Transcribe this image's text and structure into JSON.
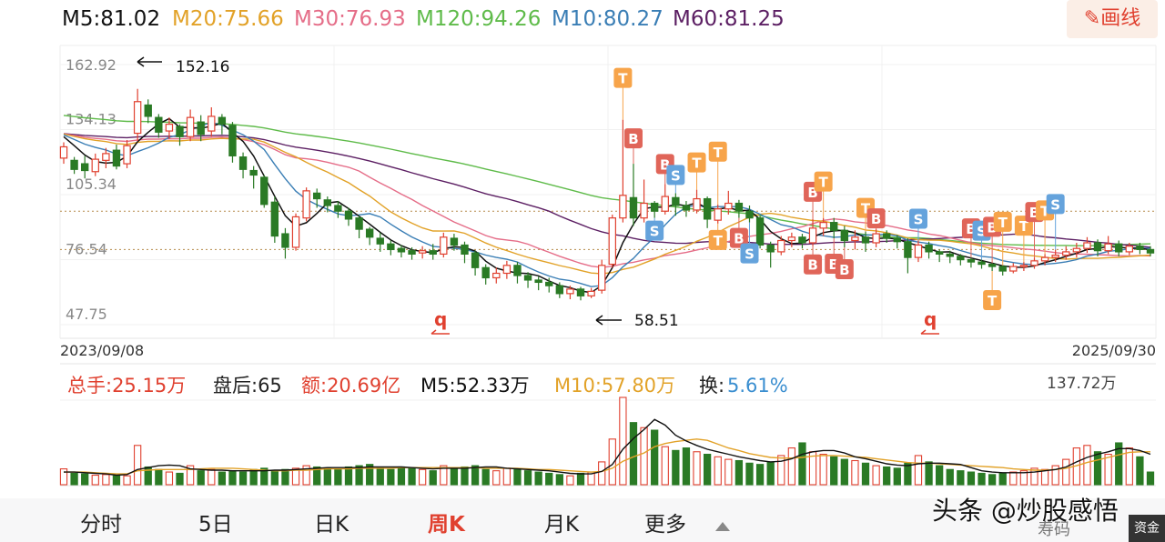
{
  "ma_bar": {
    "m5": "M5:81.02",
    "m20": "M20:75.66",
    "m30": "M30:76.93",
    "m120": "M120:94.26",
    "m10": "M10:80.27",
    "m60": "M60:81.25"
  },
  "draw_button": {
    "icon": "pencil-icon",
    "label": "画线"
  },
  "colors": {
    "up": "#e0402f",
    "down": "#2a7a25",
    "m5": "#111111",
    "m10": "#3a7eb5",
    "m20": "#e2a228",
    "m30": "#e56d88",
    "m60": "#5c1f63",
    "m120": "#5fbb4a",
    "tag_orange": "#f7a44a",
    "tag_red": "#e06559",
    "tag_blue": "#65a3dc"
  },
  "chart_data": {
    "type": "candlestick",
    "date_start": "2023/09/08",
    "date_end": "2025/09/30",
    "price_ticks": [
      "162.92",
      "134.13",
      "105.34",
      "76.54",
      "47.75"
    ],
    "price_range": [
      47.75,
      162.92
    ],
    "high_marker": {
      "label": "152.16",
      "value": 152.16
    },
    "low_marker": {
      "label": "58.51",
      "value": 58.51
    },
    "gap_markers": [
      "q",
      "q"
    ],
    "reference_lines": [
      98.0,
      81.0
    ],
    "candles": [
      [
        121.5,
        126.5,
        119.0,
        128.5
      ],
      [
        120.5,
        116.5,
        114.5,
        122.0
      ],
      [
        119.0,
        116.0,
        112.5,
        122.5
      ],
      [
        115.5,
        121.0,
        113.5,
        123.5
      ],
      [
        120.5,
        123.5,
        117.0,
        126.0
      ],
      [
        125.0,
        118.0,
        116.5,
        127.5
      ],
      [
        119.0,
        127.0,
        117.0,
        129.5
      ],
      [
        132.5,
        146.5,
        129.0,
        152.16
      ],
      [
        145.0,
        140.0,
        137.0,
        147.5
      ],
      [
        139.5,
        133.0,
        130.5,
        141.0
      ],
      [
        133.5,
        136.5,
        130.0,
        139.5
      ],
      [
        135.5,
        131.0,
        127.0,
        136.5
      ],
      [
        131.0,
        139.5,
        129.0,
        143.0
      ],
      [
        137.5,
        132.0,
        129.0,
        140.5
      ],
      [
        133.5,
        140.0,
        131.0,
        144.0
      ],
      [
        139.5,
        136.5,
        132.0,
        141.0
      ],
      [
        136.0,
        122.5,
        119.5,
        137.5
      ],
      [
        122.0,
        116.5,
        112.5,
        124.0
      ],
      [
        116.0,
        114.0,
        108.0,
        118.0
      ],
      [
        113.0,
        101.0,
        99.5,
        114.0
      ],
      [
        102.0,
        87.0,
        84.0,
        104.5
      ],
      [
        88.0,
        82.0,
        77.0,
        90.5
      ],
      [
        82.0,
        95.5,
        80.5,
        97.0
      ],
      [
        95.0,
        107.0,
        93.5,
        108.5
      ],
      [
        106.0,
        103.5,
        99.5,
        108.0
      ],
      [
        103.0,
        100.5,
        97.5,
        104.5
      ],
      [
        100.5,
        98.0,
        95.0,
        102.5
      ],
      [
        98.0,
        94.5,
        91.5,
        99.5
      ],
      [
        95.0,
        90.0,
        86.0,
        96.0
      ],
      [
        90.0,
        86.5,
        83.0,
        91.0
      ],
      [
        86.0,
        83.5,
        80.0,
        88.5
      ],
      [
        83.5,
        81.0,
        78.5,
        85.0
      ],
      [
        81.5,
        80.0,
        77.5,
        83.0
      ],
      [
        80.5,
        79.0,
        76.5,
        82.0
      ],
      [
        79.5,
        80.5,
        77.0,
        82.5
      ],
      [
        80.5,
        79.0,
        76.5,
        83.5
      ],
      [
        79.0,
        86.5,
        77.5,
        88.5
      ],
      [
        86.0,
        83.0,
        80.5,
        88.0
      ],
      [
        83.0,
        79.0,
        75.0,
        84.5
      ],
      [
        79.5,
        73.0,
        69.5,
        80.5
      ],
      [
        73.0,
        68.5,
        65.5,
        74.5
      ],
      [
        68.5,
        70.5,
        66.0,
        73.0
      ],
      [
        70.5,
        74.0,
        68.0,
        76.0
      ],
      [
        74.0,
        69.5,
        66.0,
        75.5
      ],
      [
        69.5,
        67.5,
        64.0,
        71.0
      ],
      [
        67.5,
        66.5,
        63.0,
        69.0
      ],
      [
        66.5,
        65.0,
        62.0,
        68.5
      ],
      [
        65.0,
        61.5,
        59.5,
        66.5
      ],
      [
        61.5,
        63.5,
        59.0,
        65.0
      ],
      [
        63.5,
        60.5,
        58.51,
        64.5
      ],
      [
        60.5,
        62.5,
        59.5,
        64.0
      ],
      [
        63.0,
        74.0,
        61.5,
        76.5
      ],
      [
        74.5,
        95.0,
        73.0,
        96.5
      ],
      [
        95.0,
        105.0,
        93.0,
        138.5
      ],
      [
        104.0,
        95.0,
        91.5,
        119.0
      ],
      [
        95.0,
        101.5,
        93.0,
        112.0
      ],
      [
        101.5,
        98.0,
        95.0,
        102.5
      ],
      [
        98.0,
        104.5,
        96.5,
        110.0
      ],
      [
        104.0,
        100.5,
        96.0,
        106.0
      ],
      [
        100.5,
        98.5,
        95.5,
        102.5
      ],
      [
        98.5,
        103.5,
        97.0,
        107.5
      ],
      [
        103.5,
        94.5,
        90.5,
        104.5
      ],
      [
        94.0,
        99.0,
        92.5,
        101.0
      ],
      [
        99.0,
        101.5,
        96.5,
        107.0
      ],
      [
        101.5,
        98.0,
        95.0,
        103.0
      ],
      [
        98.0,
        95.0,
        93.0,
        100.5
      ],
      [
        95.0,
        83.0,
        81.5,
        96.0
      ],
      [
        83.0,
        80.0,
        73.0,
        84.5
      ],
      [
        80.0,
        85.0,
        78.5,
        87.0
      ],
      [
        85.0,
        86.5,
        82.0,
        88.5
      ],
      [
        86.5,
        84.0,
        81.5,
        88.0
      ],
      [
        84.0,
        90.5,
        82.5,
        94.5
      ],
      [
        90.5,
        93.0,
        87.0,
        95.0
      ],
      [
        93.0,
        89.5,
        86.0,
        95.0
      ],
      [
        89.5,
        85.0,
        82.0,
        91.5
      ],
      [
        85.0,
        86.5,
        81.0,
        89.5
      ],
      [
        86.5,
        84.0,
        80.0,
        89.0
      ],
      [
        84.0,
        88.0,
        82.0,
        90.0
      ],
      [
        88.0,
        86.0,
        84.0,
        89.5
      ],
      [
        86.0,
        84.5,
        81.5,
        87.5
      ],
      [
        84.5,
        77.5,
        70.5,
        86.0
      ],
      [
        77.5,
        83.0,
        75.5,
        85.0
      ],
      [
        83.0,
        80.0,
        77.0,
        84.5
      ],
      [
        80.0,
        79.0,
        75.5,
        81.0
      ],
      [
        79.0,
        78.0,
        75.0,
        80.5
      ],
      [
        78.0,
        76.5,
        74.0,
        79.0
      ],
      [
        76.5,
        75.5,
        73.0,
        77.5
      ],
      [
        75.5,
        74.5,
        72.5,
        76.5
      ],
      [
        74.5,
        73.5,
        71.5,
        75.0
      ],
      [
        73.5,
        71.5,
        69.5,
        74.0
      ],
      [
        71.5,
        73.5,
        70.5,
        75.0
      ],
      [
        73.5,
        74.0,
        71.5,
        75.5
      ],
      [
        74.0,
        76.0,
        72.5,
        77.5
      ],
      [
        76.0,
        77.5,
        74.0,
        79.0
      ],
      [
        77.5,
        78.5,
        75.5,
        81.0
      ],
      [
        78.5,
        80.0,
        76.5,
        82.5
      ],
      [
        80.0,
        81.5,
        77.5,
        84.0
      ],
      [
        81.5,
        84.0,
        79.5,
        86.5
      ],
      [
        84.0,
        80.5,
        78.0,
        85.5
      ],
      [
        80.5,
        83.5,
        79.0,
        87.0
      ],
      [
        83.5,
        80.0,
        78.0,
        85.0
      ],
      [
        80.0,
        82.5,
        78.5,
        84.0
      ],
      [
        82.5,
        81.02,
        79.0,
        84.0
      ],
      [
        81.0,
        79.5,
        78.0,
        82.5
      ]
    ],
    "volume_max_label": "137.72万",
    "volume": [
      25,
      18,
      17,
      15,
      16,
      14,
      14,
      62,
      28,
      24,
      20,
      18,
      30,
      22,
      24,
      20,
      22,
      20,
      24,
      26,
      22,
      24,
      26,
      30,
      28,
      26,
      24,
      28,
      30,
      32,
      26,
      24,
      28,
      26,
      24,
      22,
      30,
      26,
      28,
      30,
      24,
      22,
      26,
      24,
      22,
      20,
      18,
      16,
      14,
      18,
      20,
      36,
      72,
      137.72,
      98,
      90,
      86,
      60,
      54,
      58,
      52,
      48,
      44,
      40,
      38,
      34,
      32,
      36,
      46,
      58,
      66,
      52,
      48,
      44,
      40,
      38,
      34,
      30,
      28,
      26,
      34,
      46,
      36,
      30,
      24,
      22,
      20,
      18,
      16,
      18,
      20,
      22,
      26,
      24,
      30,
      40,
      58,
      62,
      52,
      48,
      66,
      58,
      44,
      20
    ],
    "volume_ma5": [
      20,
      20,
      19,
      18,
      17,
      15,
      16,
      24,
      27,
      30,
      31,
      30,
      25,
      24,
      23,
      23,
      22,
      22,
      22,
      22,
      23,
      23,
      24,
      25,
      26,
      27,
      27,
      27,
      27,
      28,
      28,
      28,
      28,
      27,
      26,
      25,
      26,
      26,
      26,
      27,
      28,
      28,
      26,
      25,
      24,
      23,
      22,
      20,
      18,
      17,
      17,
      21,
      32,
      56,
      73,
      87,
      103,
      94,
      78,
      69,
      62,
      56,
      52,
      48,
      44,
      41,
      38,
      36,
      37,
      41,
      48,
      52,
      54,
      54,
      50,
      44,
      41,
      37,
      33,
      31,
      30,
      33,
      34,
      34,
      33,
      32,
      27,
      22,
      20,
      19,
      19,
      19,
      20,
      22,
      24,
      28,
      36,
      43,
      48,
      52,
      57,
      57,
      54,
      48
    ],
    "volume_ma10": [
      20,
      20,
      20,
      19,
      18,
      17,
      17,
      22,
      23,
      24,
      24,
      24,
      24,
      25,
      26,
      26,
      26,
      25,
      24,
      23,
      22,
      22,
      23,
      23,
      24,
      25,
      25,
      25,
      26,
      26,
      26,
      26,
      27,
      27,
      27,
      27,
      27,
      27,
      27,
      27,
      26,
      26,
      26,
      26,
      25,
      24,
      24,
      23,
      22,
      21,
      20,
      21,
      26,
      37,
      44,
      50,
      60,
      65,
      68,
      70,
      72,
      70,
      64,
      58,
      54,
      49,
      46,
      43,
      42,
      42,
      43,
      45,
      46,
      46,
      45,
      44,
      43,
      41,
      39,
      37,
      35,
      34,
      34,
      33,
      32,
      31,
      30,
      29,
      28,
      27,
      25,
      24,
      23,
      23,
      24,
      26,
      30,
      35,
      39,
      43,
      47,
      51,
      52,
      52
    ],
    "volume_header": {
      "total": "总手:25.15万",
      "after_hours": "盘后:65",
      "amount": "额:20.69亿",
      "m5": "M5:52.33万",
      "m10": "M10:57.80万",
      "turnover_label": "换:",
      "turnover_value": "5.61%"
    },
    "tags": [
      {
        "i": 53,
        "label": "T",
        "color": "tag_orange",
        "pos": "above",
        "offset": 46
      },
      {
        "i": 54,
        "label": "B",
        "color": "tag_red",
        "pos": "above",
        "offset": 28
      },
      {
        "i": 57,
        "label": "B",
        "color": "tag_red",
        "pos": "above",
        "offset": 22
      },
      {
        "i": 58,
        "label": "S",
        "color": "tag_blue",
        "pos": "above",
        "offset": 20
      },
      {
        "i": 60,
        "label": "T",
        "color": "tag_orange",
        "pos": "above",
        "offset": 30
      },
      {
        "i": 62,
        "label": "T",
        "color": "tag_orange",
        "pos": "above",
        "offset": 58
      },
      {
        "i": 71,
        "label": "B",
        "color": "tag_red",
        "pos": "above",
        "offset": 30
      },
      {
        "i": 72,
        "label": "T",
        "color": "tag_orange",
        "pos": "above",
        "offset": 40
      },
      {
        "i": 76,
        "label": "T",
        "color": "tag_orange",
        "pos": "above",
        "offset": 26
      },
      {
        "i": 77,
        "label": "B",
        "color": "tag_red",
        "pos": "above",
        "offset": 12
      },
      {
        "i": 81,
        "label": "S",
        "color": "tag_blue",
        "pos": "above",
        "offset": 24
      },
      {
        "i": 86,
        "label": "B",
        "color": "tag_red",
        "pos": "above",
        "offset": 32
      },
      {
        "i": 87,
        "label": "S",
        "color": "tag_blue",
        "pos": "above",
        "offset": 32
      },
      {
        "i": 88,
        "label": "B",
        "color": "tag_red",
        "pos": "above",
        "offset": 40
      },
      {
        "i": 89,
        "label": "T",
        "color": "tag_orange",
        "pos": "above",
        "offset": 48
      },
      {
        "i": 91,
        "label": "T",
        "color": "tag_orange",
        "pos": "above",
        "offset": 40
      },
      {
        "i": 92,
        "label": "B",
        "color": "tag_red",
        "pos": "above",
        "offset": 50
      },
      {
        "i": 93,
        "label": "T",
        "color": "tag_orange",
        "pos": "above",
        "offset": 48
      },
      {
        "i": 94,
        "label": "S",
        "color": "tag_blue",
        "pos": "above",
        "offset": 50
      },
      {
        "i": 56,
        "label": "S",
        "color": "tag_blue",
        "pos": "below",
        "offset": 14
      },
      {
        "i": 62,
        "label": "T",
        "color": "tag_orange",
        "pos": "below",
        "offset": 18
      },
      {
        "i": 64,
        "label": "B",
        "color": "tag_red",
        "pos": "below",
        "offset": 22
      },
      {
        "i": 65,
        "label": "S",
        "color": "tag_blue",
        "pos": "below",
        "offset": 34
      },
      {
        "i": 71,
        "label": "B",
        "color": "tag_red",
        "pos": "below",
        "offset": 20
      },
      {
        "i": 73,
        "label": "B",
        "color": "tag_red",
        "pos": "below",
        "offset": 28
      },
      {
        "i": 74,
        "label": "B",
        "color": "tag_red",
        "pos": "below",
        "offset": 24
      },
      {
        "i": 88,
        "label": "T",
        "color": "tag_orange",
        "pos": "below",
        "offset": 32
      }
    ]
  },
  "tabs": {
    "items": [
      "分时",
      "5日",
      "日K",
      "周K",
      "月K",
      "更多"
    ],
    "active": "周K"
  },
  "watermark": "头条 @炒股感悟",
  "bottom_strip": "寿码",
  "corner_label": "资金"
}
